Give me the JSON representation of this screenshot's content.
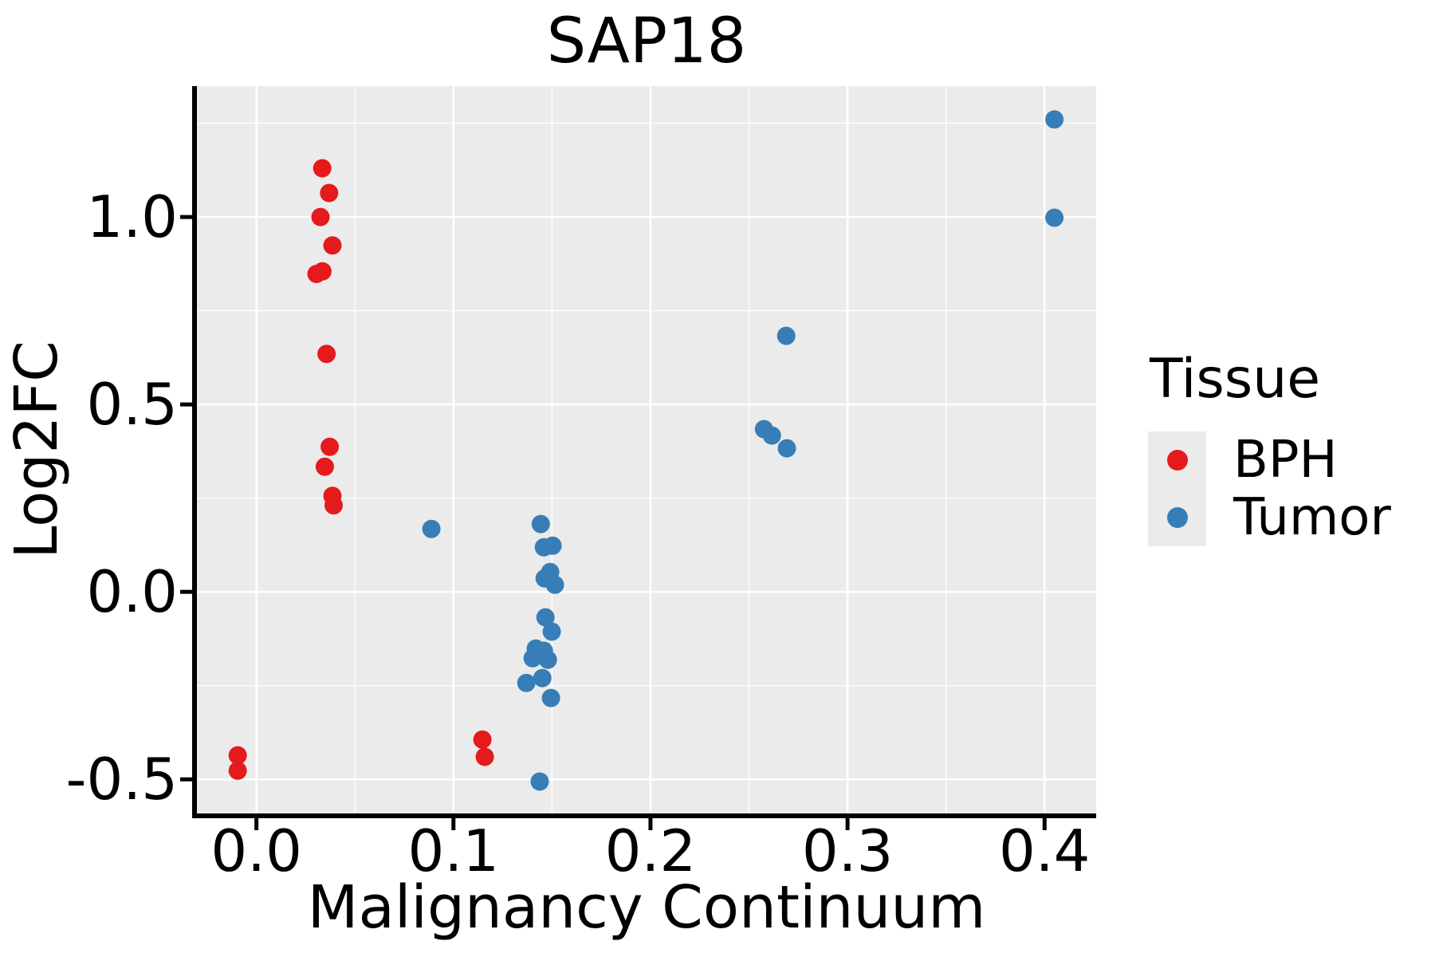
{
  "chart_data": {
    "type": "scatter",
    "title": "SAP18",
    "xlabel": "Malignancy Continuum",
    "ylabel": "Log2FC",
    "xlim": [
      -0.0302,
      0.4262
    ],
    "ylim": [
      -0.591,
      1.349
    ],
    "x_ticks": {
      "values": [
        0.0,
        0.1,
        0.2,
        0.3,
        0.4
      ],
      "labels": [
        "0.0",
        "0.1",
        "0.2",
        "0.3",
        "0.4"
      ]
    },
    "y_ticks": {
      "values": [
        -0.5,
        0.0,
        0.5,
        1.0
      ],
      "labels": [
        "-0.5",
        "0.0",
        "0.5",
        "1.0"
      ]
    },
    "x_minor_ticks": [
      0.05,
      0.15,
      0.25,
      0.35
    ],
    "y_minor_ticks": [
      -0.25,
      0.25,
      0.75,
      1.25
    ],
    "grid": "major+minor",
    "panel_background": "#EBEBEB",
    "grid_color": "#FFFFFF",
    "axis_color": "#000000",
    "point_radius": 11.5,
    "legend": {
      "title": "Tissue",
      "position": "right",
      "entries": [
        {
          "label": "BPH",
          "color": "#E41A1C"
        },
        {
          "label": "Tumor",
          "color": "#377EB8"
        }
      ]
    },
    "series": [
      {
        "name": "BPH",
        "color": "#E41A1C",
        "points": [
          [
            0.0334,
            1.13
          ],
          [
            0.0369,
            1.064
          ],
          [
            0.0325,
            1.0
          ],
          [
            0.0386,
            0.924
          ],
          [
            0.0305,
            0.848
          ],
          [
            0.0335,
            0.855
          ],
          [
            0.0356,
            0.635
          ],
          [
            0.0372,
            0.387
          ],
          [
            0.0347,
            0.334
          ],
          [
            0.0386,
            0.256
          ],
          [
            0.0392,
            0.231
          ],
          [
            -0.0095,
            -0.436
          ],
          [
            -0.0095,
            -0.477
          ],
          [
            0.1147,
            -0.394
          ],
          [
            0.1159,
            -0.44
          ]
        ]
      },
      {
        "name": "Tumor",
        "color": "#377EB8",
        "points": [
          [
            0.0888,
            0.168
          ],
          [
            0.1443,
            0.181
          ],
          [
            0.1459,
            0.119
          ],
          [
            0.1503,
            0.123
          ],
          [
            0.1491,
            0.053
          ],
          [
            0.1463,
            0.036
          ],
          [
            0.1515,
            0.019
          ],
          [
            0.1467,
            -0.068
          ],
          [
            0.1499,
            -0.106
          ],
          [
            0.1418,
            -0.151
          ],
          [
            0.1459,
            -0.157
          ],
          [
            0.1402,
            -0.177
          ],
          [
            0.1479,
            -0.181
          ],
          [
            0.137,
            -0.243
          ],
          [
            0.1451,
            -0.23
          ],
          [
            0.1495,
            -0.283
          ],
          [
            0.1438,
            -0.506
          ],
          [
            0.2576,
            0.434
          ],
          [
            0.2616,
            0.417
          ],
          [
            0.2692,
            0.383
          ],
          [
            0.2689,
            0.683
          ],
          [
            0.405,
            1.26
          ],
          [
            0.405,
            0.998
          ]
        ]
      }
    ]
  }
}
